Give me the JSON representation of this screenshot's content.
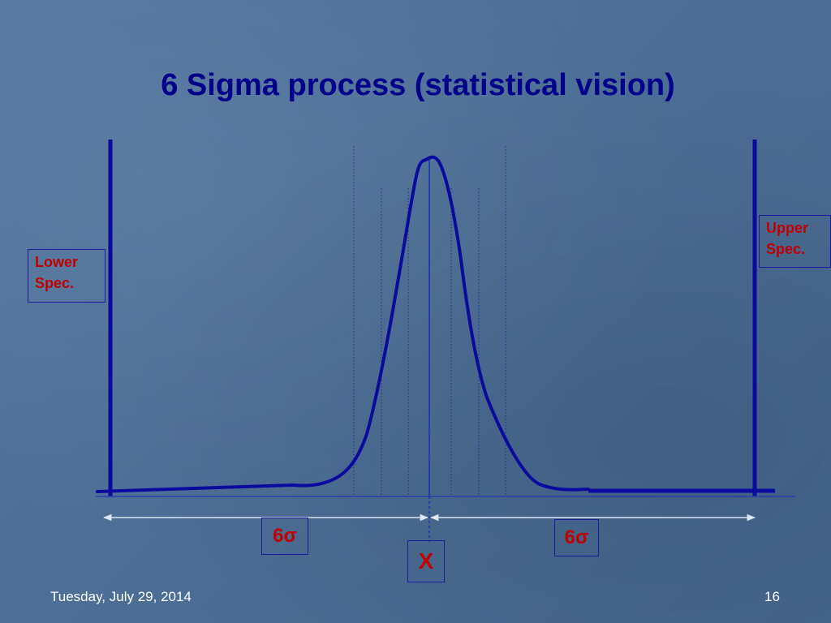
{
  "slide": {
    "title": "6 Sigma process (statistical vision)",
    "footer_date": "Tuesday, July 29, 2014",
    "page_number": "16"
  },
  "labels": {
    "lower_spec": [
      "Lower",
      "Spec."
    ],
    "upper_spec": [
      "Upper",
      "Spec."
    ],
    "left_sigma": "6σ",
    "right_sigma": "6σ",
    "mean": "X"
  },
  "colors": {
    "title": "#00008b",
    "curve": "#0a0a9e",
    "label_text": "#c00000",
    "background": "#4f7099"
  }
}
